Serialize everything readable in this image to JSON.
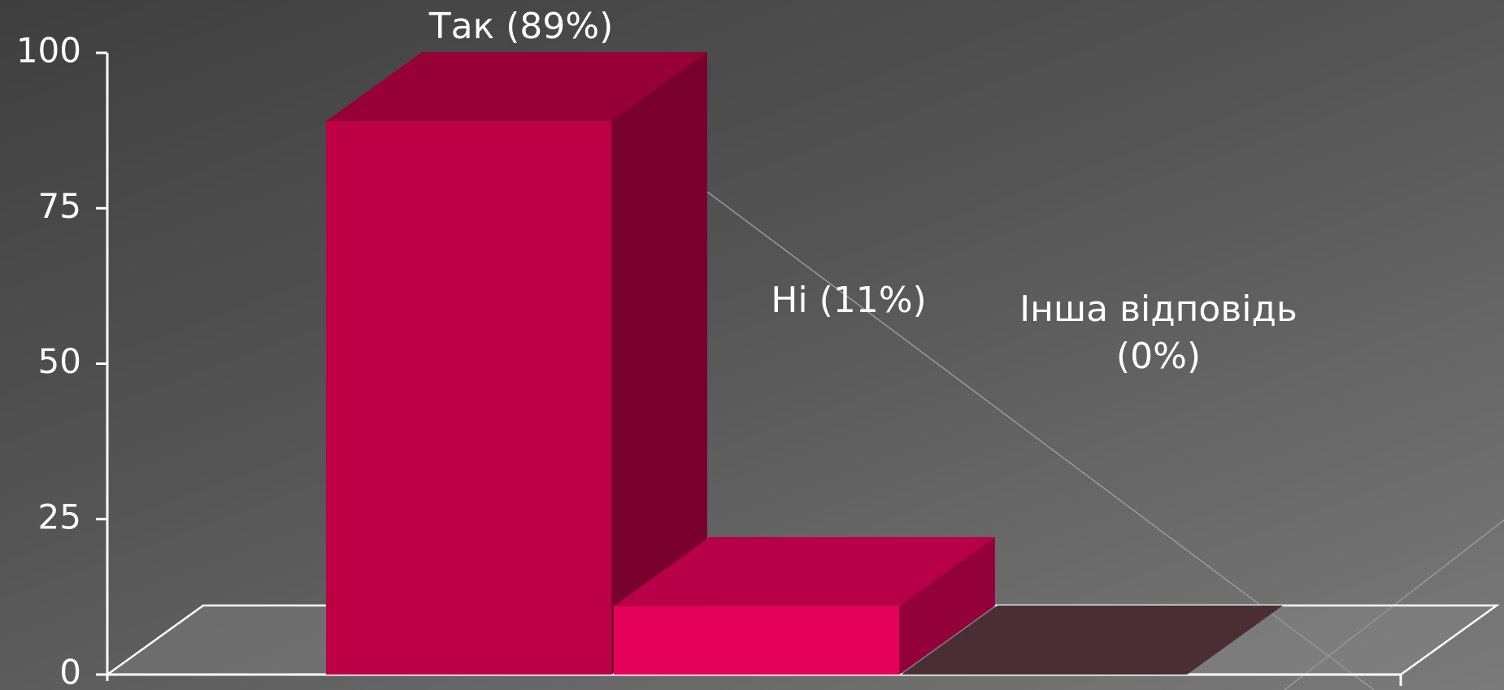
{
  "chart_data": {
    "type": "bar3d",
    "categories": [
      null,
      null,
      null
    ],
    "values": [
      89,
      11,
      0
    ],
    "value_labels": [
      "Так (89%)",
      "Ні (11%)",
      "Інша відповідь (0%)"
    ],
    "colors": [
      "#bd0045",
      "#e5005a",
      "#4a2e33"
    ],
    "ylim": [
      0,
      100
    ],
    "yticks": [
      0,
      25,
      50,
      75,
      100
    ]
  }
}
